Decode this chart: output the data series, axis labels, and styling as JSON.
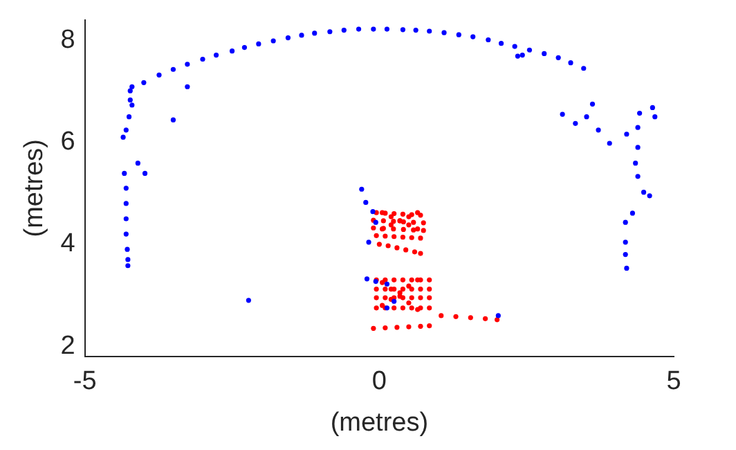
{
  "chart_data": {
    "type": "scatter",
    "xlabel": "(metres)",
    "ylabel": "(metres)",
    "xlim": [
      -5,
      5
    ],
    "ylim": [
      1.8,
      8.4
    ],
    "xticks": [
      -5,
      0,
      5
    ],
    "yticks": [
      2,
      4,
      6,
      8
    ],
    "grid": false,
    "legend": false,
    "marker": "circle",
    "series": [
      {
        "color": "#0000ff",
        "x": [
          -4.2,
          -4.0,
          -3.74,
          -3.5,
          -3.26,
          -3.0,
          -2.77,
          -2.5,
          -2.29,
          -2.05,
          -1.8,
          -1.55,
          -1.32,
          -1.1,
          -0.84,
          -0.6,
          -0.35,
          -0.1,
          0.13,
          0.4,
          0.62,
          0.85,
          1.1,
          1.35,
          1.59,
          1.85,
          2.07,
          2.3,
          2.55,
          2.8,
          3.04,
          3.25,
          3.47,
          2.43,
          2.35,
          -4.23,
          -4.23,
          -4.2,
          -4.25,
          -4.3,
          -4.35,
          -4.33,
          -4.3,
          -4.3,
          -4.3,
          -4.3,
          -4.28,
          -4.27,
          -4.27,
          -4.1,
          -3.98,
          -3.26,
          -3.5,
          -2.22,
          3.11,
          3.33,
          3.52,
          3.62,
          3.72,
          3.91,
          4.2,
          4.39,
          4.42,
          4.64,
          4.68,
          4.39,
          4.35,
          4.39,
          4.49,
          4.59,
          4.3,
          4.18,
          4.18,
          4.18,
          4.2,
          -0.3,
          -0.23,
          -0.11,
          -0.06,
          -0.18,
          -0.21,
          -0.06,
          0.13,
          0.25,
          0.13,
          2.02
        ],
        "values": [
          7.09,
          7.17,
          7.32,
          7.43,
          7.53,
          7.63,
          7.71,
          7.79,
          7.86,
          7.93,
          7.99,
          8.05,
          8.1,
          8.14,
          8.17,
          8.2,
          8.22,
          8.22,
          8.22,
          8.21,
          8.2,
          8.18,
          8.15,
          8.11,
          8.07,
          8.01,
          7.94,
          7.88,
          7.81,
          7.74,
          7.66,
          7.56,
          7.45,
          7.71,
          7.69,
          7.01,
          6.83,
          6.73,
          6.5,
          6.24,
          6.1,
          5.39,
          5.1,
          4.8,
          4.5,
          4.2,
          3.9,
          3.7,
          3.58,
          5.59,
          5.39,
          7.09,
          6.44,
          2.9,
          6.55,
          6.37,
          6.5,
          6.75,
          6.24,
          5.98,
          6.16,
          6.29,
          6.57,
          6.68,
          6.5,
          5.9,
          5.59,
          5.33,
          5.02,
          4.95,
          4.61,
          4.43,
          4.04,
          3.8,
          3.53,
          5.08,
          4.82,
          4.64,
          4.43,
          4.04,
          3.32,
          3.27,
          3.22,
          2.88,
          2.75,
          2.6
        ]
      },
      {
        "color": "#ff0000",
        "x": [
          -0.05,
          0.1,
          0.25,
          0.4,
          0.55,
          0.7,
          -0.1,
          0.07,
          0.24,
          0.41,
          0.58,
          0.75,
          -0.1,
          0.07,
          0.24,
          0.41,
          0.58,
          0.75,
          -0.05,
          0.1,
          0.25,
          0.4,
          0.55,
          0.7,
          0.05,
          0.2,
          0.35,
          0.5,
          0.65,
          0.05,
          0.2,
          0.35,
          0.5,
          0.65,
          0.0,
          0.15,
          0.3,
          0.45,
          0.6,
          0.7,
          -0.05,
          0.1,
          0.25,
          0.4,
          0.55,
          0.7,
          0.85,
          -0.05,
          0.1,
          0.25,
          0.4,
          0.55,
          0.7,
          0.85,
          -0.05,
          0.1,
          0.25,
          0.4,
          0.55,
          0.7,
          0.85,
          -0.05,
          0.1,
          0.25,
          0.4,
          0.55,
          0.7,
          0.85,
          0.05,
          0.2,
          0.35,
          0.5,
          0.65,
          0.05,
          0.2,
          0.35,
          0.5,
          0.65,
          -0.1,
          0.1,
          0.3,
          0.5,
          0.7,
          0.85,
          1.05,
          1.3,
          1.55,
          1.8,
          2.0
        ],
        "values": [
          4.62,
          4.61,
          4.6,
          4.59,
          4.58,
          4.57,
          4.47,
          4.46,
          4.45,
          4.44,
          4.43,
          4.42,
          4.32,
          4.31,
          4.3,
          4.29,
          4.28,
          4.27,
          4.17,
          4.16,
          4.15,
          4.14,
          4.13,
          4.12,
          4.3,
          4.38,
          4.46,
          4.54,
          4.62,
          4.62,
          4.54,
          4.46,
          4.38,
          4.3,
          4.0,
          3.97,
          3.93,
          3.89,
          3.85,
          3.82,
          3.3,
          3.3,
          3.3,
          3.3,
          3.3,
          3.3,
          3.3,
          3.12,
          3.12,
          3.12,
          3.12,
          3.12,
          3.12,
          3.12,
          2.95,
          2.95,
          2.95,
          2.95,
          2.95,
          2.95,
          2.95,
          2.75,
          2.75,
          2.75,
          2.75,
          2.75,
          2.75,
          2.75,
          2.8,
          2.92,
          3.05,
          3.18,
          3.3,
          3.25,
          3.12,
          2.98,
          2.85,
          2.72,
          2.35,
          2.36,
          2.37,
          2.38,
          2.39,
          2.4,
          2.6,
          2.58,
          2.56,
          2.54,
          2.52
        ]
      }
    ]
  }
}
